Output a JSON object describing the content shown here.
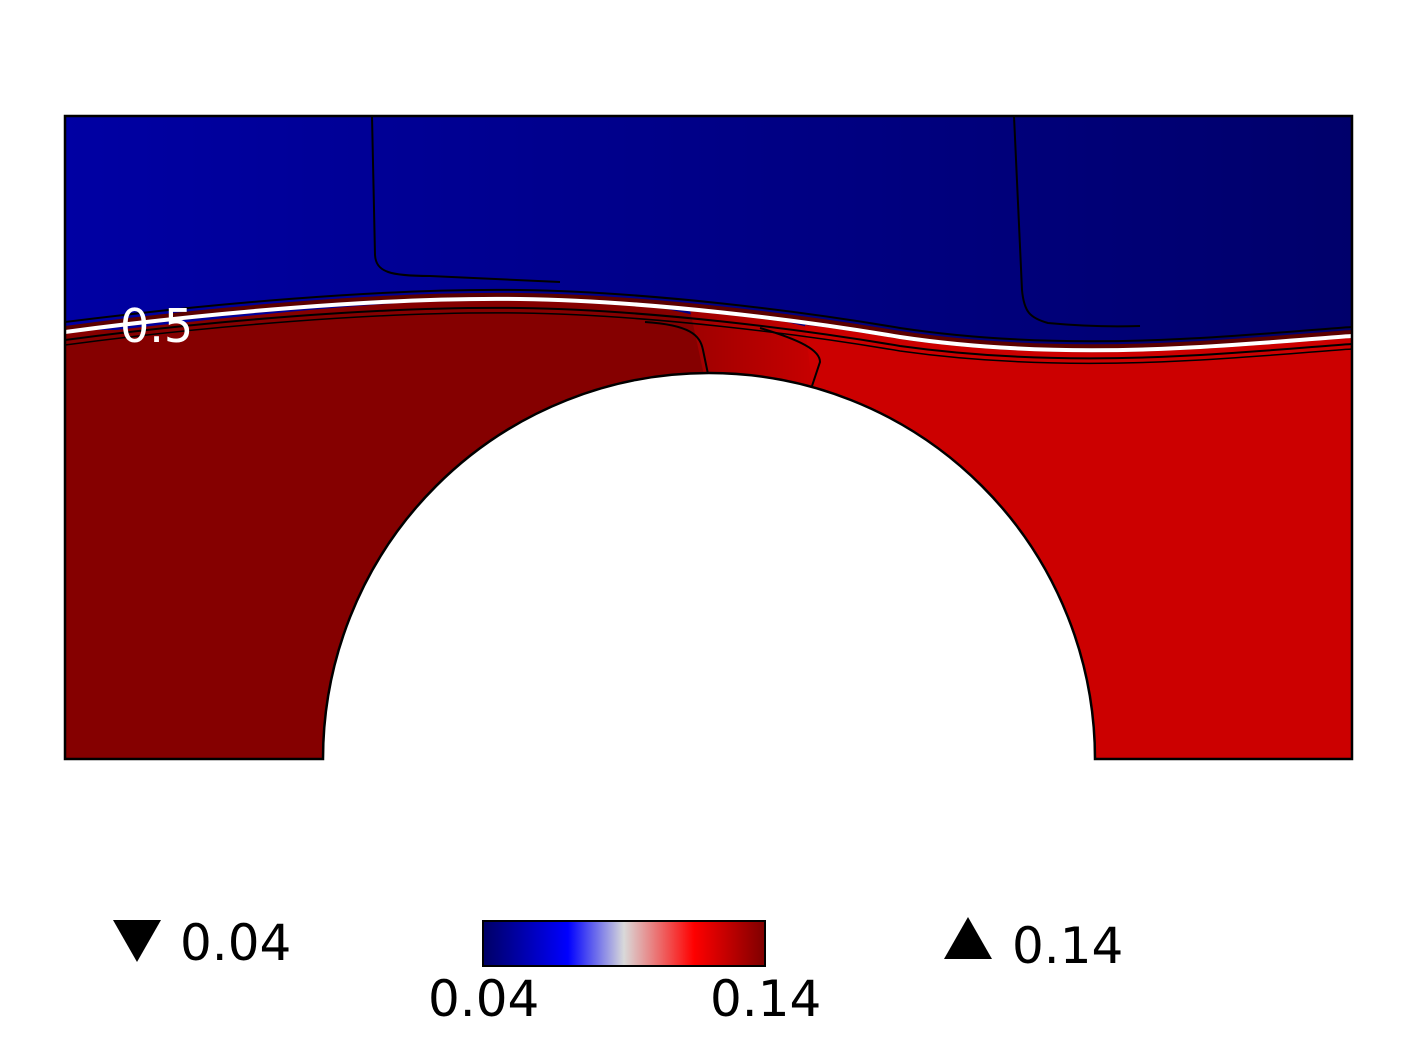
{
  "chart_data": {
    "type": "heatmap",
    "title": "",
    "description_of_field": "2D scalar field over a rectangular domain with a semicircular obstacle; a wavy interface separates a low-valued upper layer from a high-valued lower layer",
    "colormap": [
      "#000066",
      "#0000ff",
      "#d9d9d9",
      "#ff0000",
      "#800000"
    ],
    "colorbar": {
      "min": 0.04,
      "max": 0.14,
      "min_label": "0.04",
      "max_label": "0.14"
    },
    "range_markers": {
      "min": {
        "symbol": "▼",
        "value": "0.04"
      },
      "max": {
        "symbol": "▲",
        "value": "0.14"
      }
    },
    "contour_annotations": [
      {
        "level": "0.5",
        "color": "#ffffff"
      }
    ],
    "region_values": {
      "upper_left": 0.052,
      "upper_right": 0.041,
      "lower_left": 0.139,
      "lower_middle": 0.134,
      "lower_right": 0.125
    }
  }
}
